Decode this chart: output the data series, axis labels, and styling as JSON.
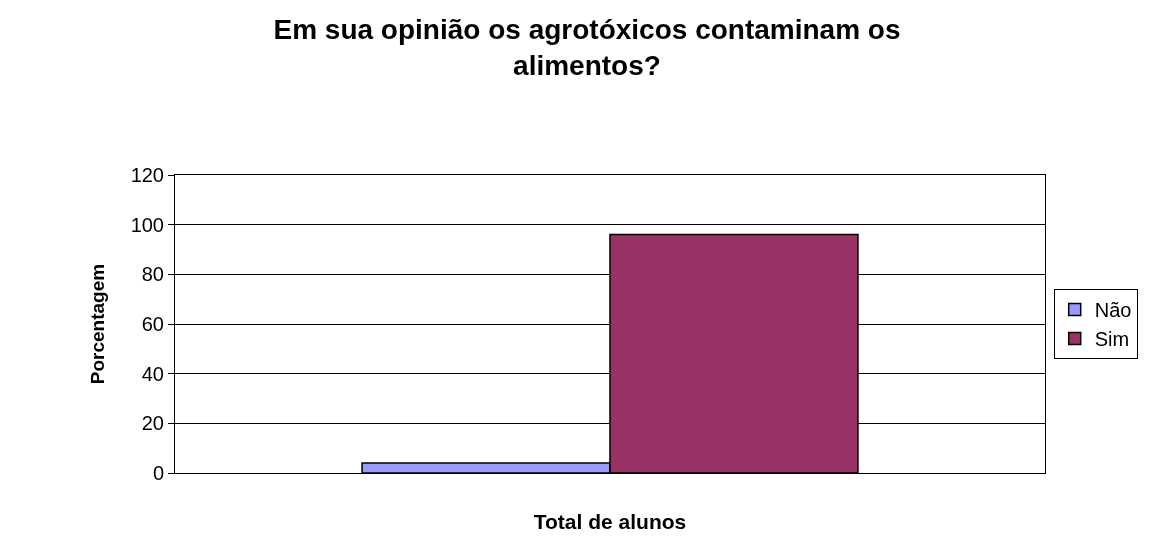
{
  "chart_data": {
    "type": "bar",
    "title": "Em sua opinião os agrotóxicos contaminam os alimentos?",
    "ylabel": "Porcentagem",
    "categories": [
      "Total de alunos"
    ],
    "series": [
      {
        "name": "Não",
        "color": "#9999ff",
        "values": [
          4
        ]
      },
      {
        "name": "Sim",
        "color": "#993366",
        "values": [
          96
        ]
      }
    ],
    "ylim": [
      0,
      120
    ],
    "yticks": [
      0,
      20,
      40,
      60,
      80,
      100,
      120
    ],
    "grid": "y",
    "legend": "right"
  }
}
